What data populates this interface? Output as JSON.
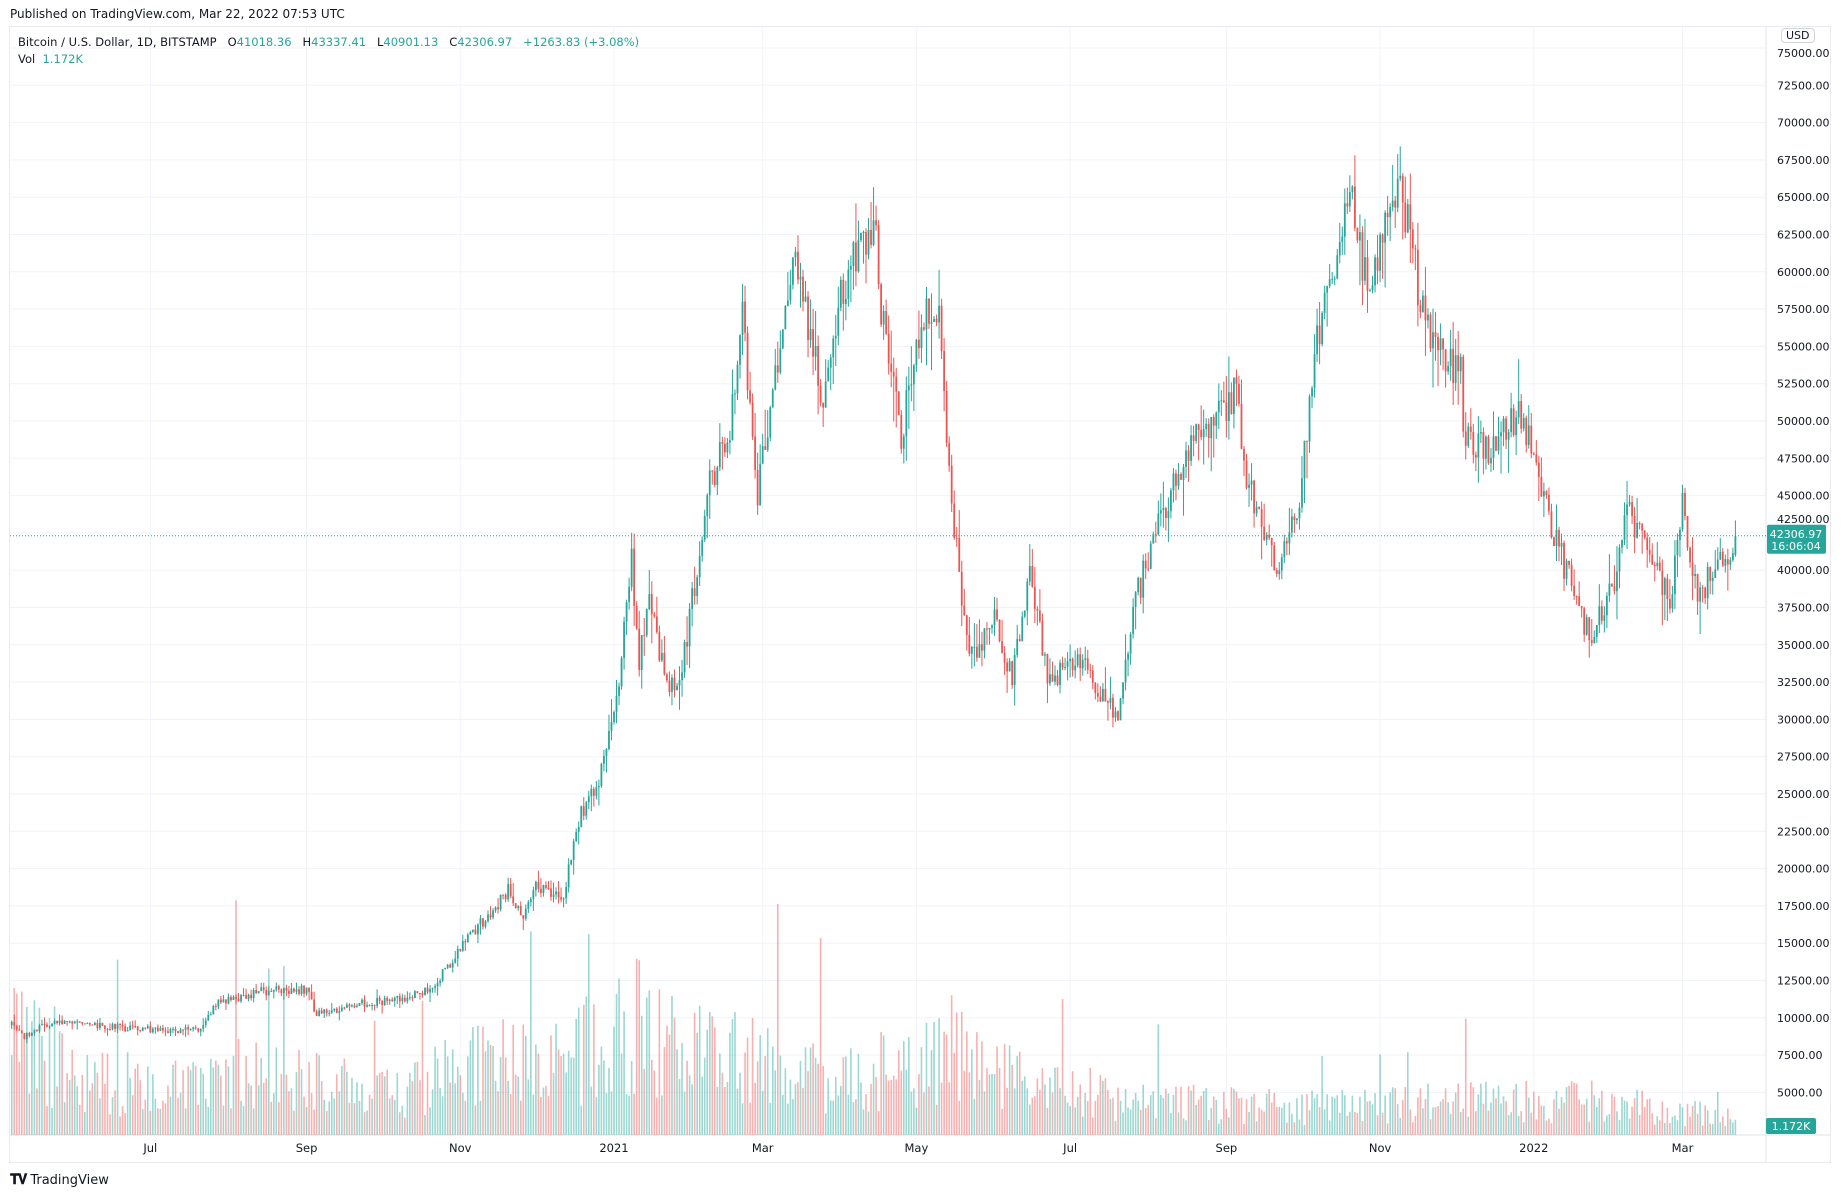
{
  "header": {
    "published": "Published on TradingView.com, Mar 22, 2022 07:53 UTC"
  },
  "legend": {
    "symbol": "Bitcoin / U.S. Dollar, 1D, BITSTAMP",
    "o_label": "O",
    "o": "41018.36",
    "h_label": "H",
    "h": "43337.41",
    "l_label": "L",
    "l": "40901.13",
    "c_label": "C",
    "c": "42306.97",
    "change": "+1263.83 (+3.08%)",
    "vol_label": "Vol",
    "vol": "1.172K"
  },
  "price_axis": {
    "currency": "USD",
    "last_price": "42306.97",
    "countdown": "16:06:04",
    "last_volume": "1.172K"
  },
  "footer": {
    "logo_text": "TradingView"
  },
  "colors": {
    "up": "#26a69a",
    "down": "#ef5350",
    "grid": "#f0f3fa"
  },
  "chart_data": {
    "type": "candlestick",
    "title": "Bitcoin / U.S. Dollar, 1D, BITSTAMP",
    "ylim": [
      0,
      75000
    ],
    "y_ticks": [
      5000,
      7500,
      10000,
      12500,
      15000,
      17500,
      20000,
      22500,
      25000,
      27500,
      30000,
      32500,
      35000,
      37500,
      40000,
      42500,
      45000,
      47500,
      50000,
      52500,
      55000,
      57500,
      60000,
      62500,
      65000,
      67500,
      70000,
      72500,
      75000
    ],
    "x_ticks": [
      {
        "date": "2020-07-01",
        "label": "Jul"
      },
      {
        "date": "2020-09-01",
        "label": "Sep"
      },
      {
        "date": "2020-11-01",
        "label": "Nov"
      },
      {
        "date": "2021-01-01",
        "label": "2021"
      },
      {
        "date": "2021-03-01",
        "label": "Mar"
      },
      {
        "date": "2021-05-01",
        "label": "May"
      },
      {
        "date": "2021-07-01",
        "label": "Jul"
      },
      {
        "date": "2021-09-01",
        "label": "Sep"
      },
      {
        "date": "2021-11-01",
        "label": "Nov"
      },
      {
        "date": "2022-01-01",
        "label": "2022"
      },
      {
        "date": "2022-03-01",
        "label": "Mar"
      }
    ],
    "date_range": [
      "2020-05-07",
      "2022-03-22"
    ],
    "approx_close_path": [
      [
        "2020-05-07",
        9500
      ],
      [
        "2020-05-12",
        8700
      ],
      [
        "2020-05-20",
        9500
      ],
      [
        "2020-06-01",
        9700
      ],
      [
        "2020-06-15",
        9400
      ],
      [
        "2020-07-01",
        9200
      ],
      [
        "2020-07-20",
        9200
      ],
      [
        "2020-07-28",
        11000
      ],
      [
        "2020-08-15",
        11800
      ],
      [
        "2020-09-01",
        11900
      ],
      [
        "2020-09-05",
        10200
      ],
      [
        "2020-09-20",
        10900
      ],
      [
        "2020-10-10",
        11300
      ],
      [
        "2020-10-20",
        11900
      ],
      [
        "2020-10-25",
        13000
      ],
      [
        "2020-11-05",
        15500
      ],
      [
        "2020-11-20",
        18500
      ],
      [
        "2020-11-26",
        17000
      ],
      [
        "2020-12-01",
        19000
      ],
      [
        "2020-12-12",
        18000
      ],
      [
        "2020-12-17",
        23000
      ],
      [
        "2020-12-27",
        26500
      ],
      [
        "2021-01-03",
        33000
      ],
      [
        "2021-01-08",
        40500
      ],
      [
        "2021-01-11",
        34000
      ],
      [
        "2021-01-15",
        38000
      ],
      [
        "2021-01-22",
        32000
      ],
      [
        "2021-01-28",
        33500
      ],
      [
        "2021-02-08",
        46000
      ],
      [
        "2021-02-16",
        49000
      ],
      [
        "2021-02-21",
        57000
      ],
      [
        "2021-02-27",
        45000
      ],
      [
        "2021-03-13",
        61000
      ],
      [
        "2021-03-25",
        51500
      ],
      [
        "2021-04-02",
        59000
      ],
      [
        "2021-04-14",
        63500
      ],
      [
        "2021-04-18",
        56000
      ],
      [
        "2021-04-25",
        49000
      ],
      [
        "2021-05-03",
        57000
      ],
      [
        "2021-05-10",
        58000
      ],
      [
        "2021-05-13",
        49500
      ],
      [
        "2021-05-19",
        37000
      ],
      [
        "2021-05-23",
        34500
      ],
      [
        "2021-06-01",
        36500
      ],
      [
        "2021-06-08",
        33000
      ],
      [
        "2021-06-15",
        40000
      ],
      [
        "2021-06-22",
        32500
      ],
      [
        "2021-07-06",
        34000
      ],
      [
        "2021-07-20",
        29800
      ],
      [
        "2021-07-26",
        37500
      ],
      [
        "2021-08-07",
        44000
      ],
      [
        "2021-08-14",
        47000
      ],
      [
        "2021-08-22",
        49500
      ],
      [
        "2021-09-06",
        52000
      ],
      [
        "2021-09-08",
        46500
      ],
      [
        "2021-09-21",
        40500
      ],
      [
        "2021-09-30",
        43800
      ],
      [
        "2021-10-06",
        55000
      ],
      [
        "2021-10-15",
        61500
      ],
      [
        "2021-10-20",
        66000
      ],
      [
        "2021-10-27",
        58500
      ],
      [
        "2021-11-08",
        66000
      ],
      [
        "2021-11-10",
        65000
      ],
      [
        "2021-11-18",
        57000
      ],
      [
        "2021-11-26",
        54000
      ],
      [
        "2021-12-03",
        53500
      ],
      [
        "2021-12-04",
        49000
      ],
      [
        "2021-12-14",
        48000
      ],
      [
        "2021-12-27",
        50700
      ],
      [
        "2022-01-04",
        46000
      ],
      [
        "2022-01-10",
        41800
      ],
      [
        "2022-01-21",
        36500
      ],
      [
        "2022-01-24",
        36000
      ],
      [
        "2022-02-01",
        38500
      ],
      [
        "2022-02-07",
        44000
      ],
      [
        "2022-02-14",
        42000
      ],
      [
        "2022-02-18",
        40000
      ],
      [
        "2022-02-24",
        38000
      ],
      [
        "2022-03-01",
        44500
      ],
      [
        "2022-03-07",
        38000
      ],
      [
        "2022-03-16",
        41000
      ],
      [
        "2022-03-21",
        41018
      ]
    ],
    "last_candle": {
      "date": "2022-03-22",
      "open": 41018.36,
      "high": 43337.41,
      "low": 40901.13,
      "close": 42306.97,
      "volume_k": 1.172
    },
    "approx_volume_k_path": [
      [
        "2020-05-07",
        9
      ],
      [
        "2020-06-01",
        5
      ],
      [
        "2020-07-20",
        4
      ],
      [
        "2020-08-01",
        6
      ],
      [
        "2020-09-01",
        5
      ],
      [
        "2020-10-01",
        3.5
      ],
      [
        "2020-11-01",
        6
      ],
      [
        "2020-12-15",
        7
      ],
      [
        "2021-01-10",
        10
      ],
      [
        "2021-02-15",
        7
      ],
      [
        "2021-04-01",
        4.5
      ],
      [
        "2021-05-19",
        8
      ],
      [
        "2021-06-15",
        4
      ],
      [
        "2021-08-01",
        3
      ],
      [
        "2021-10-01",
        2.5
      ],
      [
        "2021-12-04",
        3
      ],
      [
        "2022-01-24",
        3
      ],
      [
        "2022-03-21",
        1.5
      ]
    ]
  }
}
